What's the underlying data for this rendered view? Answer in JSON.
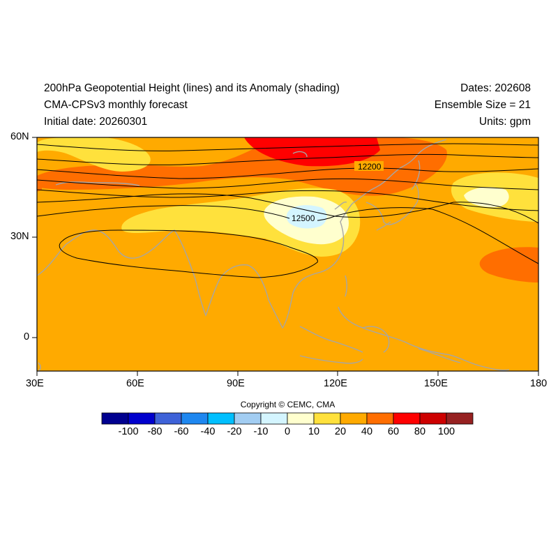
{
  "header": {
    "title_line1": "200hPa Geopotential Height (lines) and its Anomaly (shading)",
    "title_line2": "CMA-CPSv3 monthly forecast",
    "title_line3": "Initial date: 20260301",
    "right_line1": "Dates: 202608",
    "right_line2": "Ensemble Size = 21",
    "right_line3": "Units: gpm"
  },
  "map": {
    "lon_range": [
      30,
      180
    ],
    "lat_range": [
      -10,
      60
    ],
    "lat_ticks": [
      {
        "value": 60,
        "label": "60N"
      },
      {
        "value": 30,
        "label": "30N"
      },
      {
        "value": 0,
        "label": "0"
      }
    ],
    "lon_ticks": [
      {
        "value": 30,
        "label": "30E"
      },
      {
        "value": 60,
        "label": "60E"
      },
      {
        "value": 90,
        "label": "90E"
      },
      {
        "value": 120,
        "label": "120E"
      },
      {
        "value": 150,
        "label": "150E"
      },
      {
        "value": 180,
        "label": "180"
      }
    ],
    "contour_labels": [
      {
        "text": "12200",
        "lon": 124,
        "lat": 51
      },
      {
        "text": "12500",
        "lon": 111,
        "lat": 36
      }
    ]
  },
  "colorbar": {
    "colors": [
      "#00008f",
      "#0000cd",
      "#3e62d8",
      "#1e87f0",
      "#00bfff",
      "#a2cdf2",
      "#d4f5ff",
      "#ffffce",
      "#ffe13c",
      "#ffaa00",
      "#ff6e00",
      "#ff0000",
      "#cd0000",
      "#962121"
    ],
    "labels": [
      "-100",
      "-80",
      "-60",
      "-40",
      "-20",
      "-10",
      "0",
      "10",
      "20",
      "40",
      "60",
      "80",
      "100"
    ]
  },
  "copyright": "Copyright © CEMC, CMA"
}
